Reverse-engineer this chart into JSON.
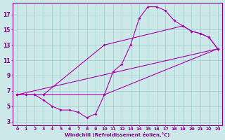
{
  "xlabel": "Windchill (Refroidissement éolien,°C)",
  "bg_color": "#cce8e8",
  "line_color": "#aa00aa",
  "marker": "D",
  "markersize": 2.0,
  "linewidth": 0.8,
  "xlim": [
    -0.5,
    23.5
  ],
  "ylim": [
    2.5,
    18.5
  ],
  "xticks": [
    0,
    1,
    2,
    3,
    4,
    5,
    6,
    7,
    8,
    9,
    10,
    11,
    12,
    13,
    14,
    15,
    16,
    17,
    18,
    19,
    20,
    21,
    22,
    23
  ],
  "yticks": [
    3,
    5,
    7,
    9,
    11,
    13,
    15,
    17
  ],
  "series1_x": [
    0,
    1,
    2,
    3,
    10,
    23
  ],
  "series1_y": [
    6.5,
    6.5,
    6.5,
    6.5,
    6.5,
    12.5
  ],
  "series2_x": [
    0,
    23
  ],
  "series2_y": [
    6.5,
    12.5
  ],
  "series3_x": [
    0,
    1,
    2,
    3,
    4,
    5,
    6,
    7,
    8,
    9,
    10,
    11,
    12,
    13,
    14,
    15,
    16,
    17,
    18,
    19,
    20,
    21,
    22,
    23
  ],
  "series3_y": [
    6.5,
    6.5,
    6.5,
    5.8,
    5.0,
    4.5,
    4.5,
    4.2,
    3.5,
    4.0,
    6.5,
    9.5,
    10.5,
    13.0,
    16.5,
    18.0,
    18.0,
    17.5,
    16.2,
    15.5,
    14.8,
    14.5,
    14.0,
    12.5
  ],
  "series4_x": [
    3,
    10,
    19,
    20,
    21,
    22,
    23
  ],
  "series4_y": [
    6.5,
    13.0,
    15.5,
    14.8,
    14.5,
    14.0,
    12.5
  ]
}
